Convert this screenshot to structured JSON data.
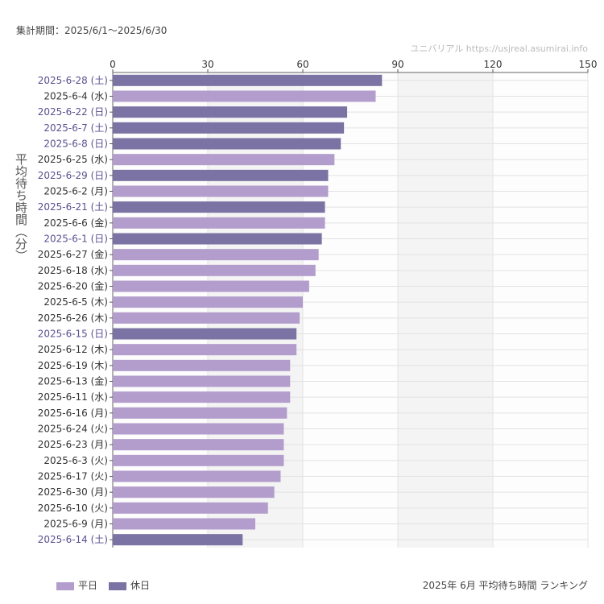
{
  "header": {
    "period": "集計期間：2025/6/1〜2025/6/30",
    "credit": "ユニバリアル  https://usjreal.asumirai.info"
  },
  "caption": "2025年 6月 平均待ち時間 ランキング",
  "legend": [
    {
      "label": "平日",
      "color": "#b39dcc"
    },
    {
      "label": "休日",
      "color": "#7b73a3"
    }
  ],
  "chart_data": {
    "type": "bar",
    "orientation": "horizontal",
    "ylabel": "平均待ち時間（分）",
    "xlim": [
      0,
      150
    ],
    "xticks": [
      "0",
      "30",
      "60",
      "90",
      "120",
      "150"
    ],
    "grid": true,
    "legend_position": "bottom-left",
    "colors": {
      "weekday": "#b39dcc",
      "holiday": "#7b73a3",
      "holiday_label": "#5a5090",
      "weekday_label": "#333333"
    },
    "categories": [
      "2025-6-28 (土)",
      "2025-6-4 (水)",
      "2025-6-22 (日)",
      "2025-6-7 (土)",
      "2025-6-8 (日)",
      "2025-6-25 (水)",
      "2025-6-29 (日)",
      "2025-6-2 (月)",
      "2025-6-21 (土)",
      "2025-6-6 (金)",
      "2025-6-1 (日)",
      "2025-6-27 (金)",
      "2025-6-18 (水)",
      "2025-6-20 (金)",
      "2025-6-5 (木)",
      "2025-6-26 (木)",
      "2025-6-15 (日)",
      "2025-6-12 (木)",
      "2025-6-19 (木)",
      "2025-6-13 (金)",
      "2025-6-11 (水)",
      "2025-6-16 (月)",
      "2025-6-24 (火)",
      "2025-6-23 (月)",
      "2025-6-3 (火)",
      "2025-6-17 (火)",
      "2025-6-30 (月)",
      "2025-6-10 (火)",
      "2025-6-9 (月)",
      "2025-6-14 (土)"
    ],
    "values": [
      85,
      83,
      74,
      73,
      72,
      70,
      68,
      68,
      67,
      67,
      66,
      65,
      64,
      62,
      60,
      59,
      58,
      58,
      56,
      56,
      56,
      55,
      54,
      54,
      54,
      53,
      51,
      49,
      45,
      41
    ],
    "holiday": [
      true,
      false,
      true,
      true,
      true,
      false,
      true,
      false,
      true,
      false,
      true,
      false,
      false,
      false,
      false,
      false,
      true,
      false,
      false,
      false,
      false,
      false,
      false,
      false,
      false,
      false,
      false,
      false,
      false,
      true
    ]
  }
}
